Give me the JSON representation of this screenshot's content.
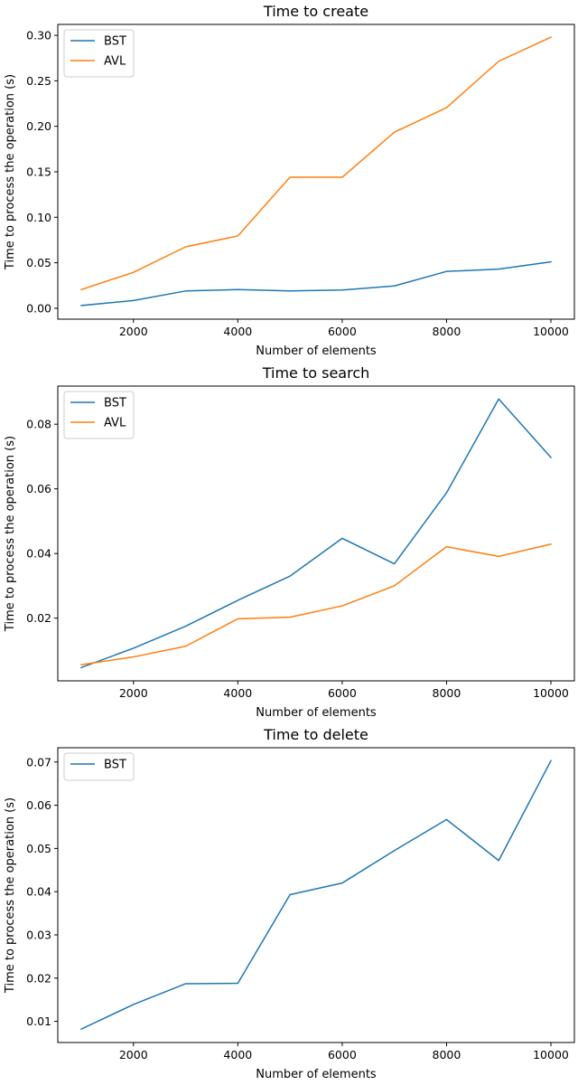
{
  "chart_data": [
    {
      "type": "line",
      "title": "Time to create",
      "xlabel": "Number of elements",
      "ylabel": "Time to process the operation (s)",
      "x": [
        1000,
        2000,
        3000,
        4000,
        5000,
        6000,
        7000,
        8000,
        9000,
        10000
      ],
      "xlim": [
        550,
        10450
      ],
      "ylim": [
        -0.012,
        0.312
      ],
      "xticks": [
        2000,
        4000,
        6000,
        8000,
        10000
      ],
      "xtick_labels": [
        "2000",
        "4000",
        "6000",
        "8000",
        "10000"
      ],
      "yticks": [
        0.0,
        0.05,
        0.1,
        0.15,
        0.2,
        0.25,
        0.3
      ],
      "ytick_labels": [
        "0.00",
        "0.05",
        "0.10",
        "0.15",
        "0.20",
        "0.25",
        "0.30"
      ],
      "grid": false,
      "legend": "upper-left",
      "series": [
        {
          "name": "BST",
          "color": "#1f77b4",
          "values": [
            0.003,
            0.0085,
            0.019,
            0.0205,
            0.019,
            0.02,
            0.0245,
            0.0405,
            0.043,
            0.051
          ]
        },
        {
          "name": "AVL",
          "color": "#ff7f0e",
          "values": [
            0.0205,
            0.0395,
            0.0675,
            0.0795,
            0.144,
            0.144,
            0.1935,
            0.2205,
            0.2715,
            0.298
          ]
        }
      ]
    },
    {
      "type": "line",
      "title": "Time to search",
      "xlabel": "Number of elements",
      "ylabel": "Time to process the operation (s)",
      "x": [
        1000,
        2000,
        3000,
        4000,
        5000,
        6000,
        7000,
        8000,
        9000,
        10000
      ],
      "xlim": [
        550,
        10450
      ],
      "ylim": [
        0.0006,
        0.0918
      ],
      "xticks": [
        2000,
        4000,
        6000,
        8000,
        10000
      ],
      "xtick_labels": [
        "2000",
        "4000",
        "6000",
        "8000",
        "10000"
      ],
      "yticks": [
        0.02,
        0.04,
        0.06,
        0.08
      ],
      "ytick_labels": [
        "0.02",
        "0.04",
        "0.06",
        "0.08"
      ],
      "grid": false,
      "legend": "upper-left",
      "series": [
        {
          "name": "BST",
          "color": "#1f77b4",
          "values": [
            0.0047,
            0.0107,
            0.0175,
            0.0255,
            0.033,
            0.0447,
            0.0368,
            0.0588,
            0.0878,
            0.0697
          ]
        },
        {
          "name": "AVL",
          "color": "#ff7f0e",
          "values": [
            0.0056,
            0.008,
            0.0113,
            0.0198,
            0.0203,
            0.0238,
            0.03,
            0.0421,
            0.0391,
            0.0429
          ]
        }
      ]
    },
    {
      "type": "line",
      "title": "Time to delete",
      "xlabel": "Number of elements",
      "ylabel": "Time to process the operation (s)",
      "x": [
        1000,
        2000,
        3000,
        4000,
        5000,
        6000,
        7000,
        8000,
        9000,
        10000
      ],
      "xlim": [
        550,
        10450
      ],
      "ylim": [
        0.0051,
        0.0733
      ],
      "xticks": [
        2000,
        4000,
        6000,
        8000,
        10000
      ],
      "xtick_labels": [
        "2000",
        "4000",
        "6000",
        "8000",
        "10000"
      ],
      "yticks": [
        0.01,
        0.02,
        0.03,
        0.04,
        0.05,
        0.06,
        0.07
      ],
      "ytick_labels": [
        "0.01",
        "0.02",
        "0.03",
        "0.04",
        "0.05",
        "0.06",
        "0.07"
      ],
      "grid": false,
      "legend": "upper-left",
      "series": [
        {
          "name": "BST",
          "color": "#1f77b4",
          "values": [
            0.0082,
            0.0139,
            0.0187,
            0.0188,
            0.0393,
            0.042,
            0.0495,
            0.0567,
            0.0472,
            0.0703
          ]
        }
      ]
    }
  ]
}
